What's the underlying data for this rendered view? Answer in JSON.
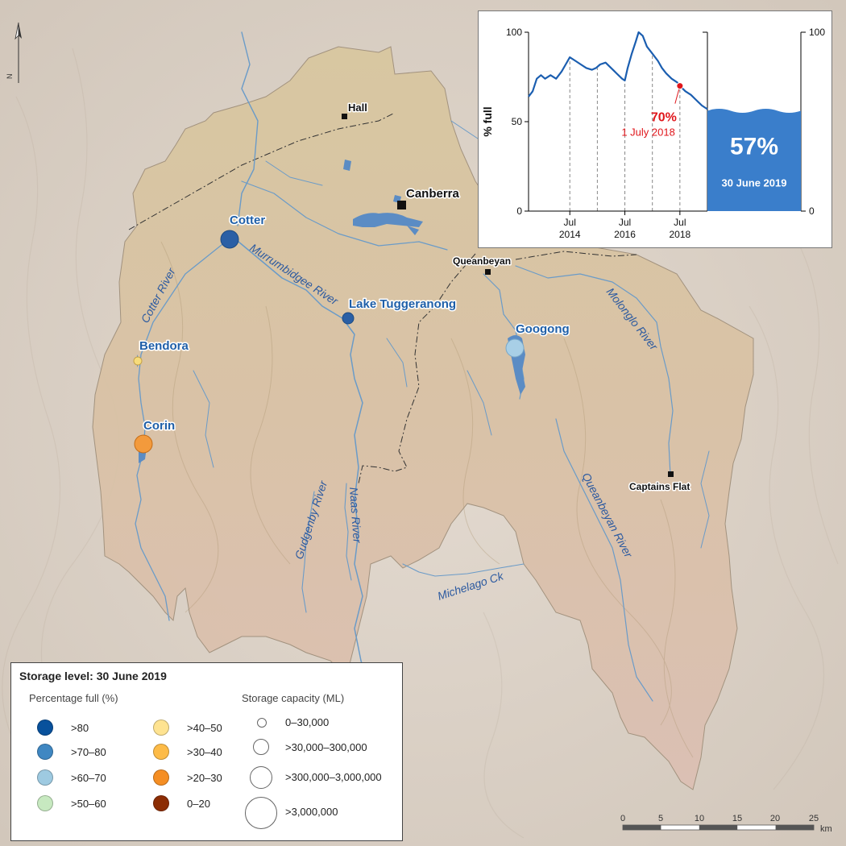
{
  "towns": [
    {
      "name": "Hall"
    },
    {
      "name": "Canberra"
    },
    {
      "name": "Queanbeyan"
    },
    {
      "name": "Captains Flat"
    }
  ],
  "rivers": [
    {
      "name": "Cotter River"
    },
    {
      "name": "Murrumbidgee River"
    },
    {
      "name": "Molonglo River"
    },
    {
      "name": "Queanbeyan River"
    },
    {
      "name": "Gudgenby River"
    },
    {
      "name": "Naas River"
    },
    {
      "name": "Michelago Ck"
    }
  ],
  "storages": [
    {
      "name": "Cotter",
      "color": "#2a5fa5"
    },
    {
      "name": "Lake Tuggeranong",
      "color": "#2a5fa5"
    },
    {
      "name": "Bendora",
      "color": "#f7dc7b"
    },
    {
      "name": "Corin",
      "color": "#f39a3c"
    },
    {
      "name": "Googong",
      "color": "#a8cfe6"
    }
  ],
  "north_label": "N",
  "inset": {
    "chart_data": {
      "type": "line",
      "ylabel": "% full",
      "ylim": [
        0,
        100
      ],
      "yticks": [
        "0",
        "50",
        "100"
      ],
      "right_axis_ticks": [
        "0",
        "100"
      ],
      "xticks": [
        {
          "month": "Jul",
          "year": "2014"
        },
        {
          "month": "Jul",
          "year": "2016"
        },
        {
          "month": "Jul",
          "year": "2018"
        }
      ],
      "x_start": 2013.0,
      "series": [
        {
          "values": [
            [
              2013.0,
              64
            ],
            [
              2013.15,
              67
            ],
            [
              2013.3,
              74
            ],
            [
              2013.45,
              76
            ],
            [
              2013.6,
              74
            ],
            [
              2013.8,
              76
            ],
            [
              2014.0,
              74
            ],
            [
              2014.2,
              78
            ],
            [
              2014.35,
              82
            ],
            [
              2014.5,
              86
            ],
            [
              2014.7,
              84
            ],
            [
              2014.9,
              82
            ],
            [
              2015.1,
              80
            ],
            [
              2015.3,
              79
            ],
            [
              2015.45,
              80
            ],
            [
              2015.6,
              82
            ],
            [
              2015.8,
              83
            ],
            [
              2016.0,
              80
            ],
            [
              2016.2,
              77
            ],
            [
              2016.4,
              74
            ],
            [
              2016.5,
              73
            ],
            [
              2016.6,
              80
            ],
            [
              2016.75,
              88
            ],
            [
              2016.9,
              95
            ],
            [
              2017.0,
              100
            ],
            [
              2017.15,
              98
            ],
            [
              2017.3,
              92
            ],
            [
              2017.5,
              88
            ],
            [
              2017.7,
              84
            ],
            [
              2017.85,
              80
            ],
            [
              2018.0,
              77
            ],
            [
              2018.2,
              74
            ],
            [
              2018.4,
              72
            ],
            [
              2018.5,
              70
            ],
            [
              2018.7,
              67
            ],
            [
              2018.9,
              65
            ],
            [
              2019.1,
              62
            ],
            [
              2019.3,
              59
            ],
            [
              2019.5,
              57
            ]
          ]
        }
      ],
      "annotation": {
        "value": "70%",
        "date": "1 July 2018",
        "x": 2018.5,
        "y": 70
      },
      "current": {
        "value": "57%",
        "date": "30 June 2019",
        "level": 57
      }
    }
  },
  "legend": {
    "title": "Storage level: 30 June 2019",
    "percent_title": "Percentage full (%)",
    "capacity_title": "Storage capacity (ML)",
    "percent_classes": [
      {
        "label": ">80",
        "color": "#08519c"
      },
      {
        "label": ">70–80",
        "color": "#3f87c2"
      },
      {
        "label": ">60–70",
        "color": "#9ecae1"
      },
      {
        "label": ">50–60",
        "color": "#c7e9c0"
      },
      {
        "label": ">40–50",
        "color": "#fee391"
      },
      {
        "label": ">30–40",
        "color": "#fdbb47"
      },
      {
        "label": ">20–30",
        "color": "#f58e23"
      },
      {
        "label": "0–20",
        "color": "#8c2d04"
      }
    ],
    "capacity_classes": [
      {
        "label": "0–30,000"
      },
      {
        "label": ">30,000–300,000"
      },
      {
        "label": ">300,000–3,000,000"
      },
      {
        "label": ">3,000,000"
      }
    ]
  },
  "scalebar": {
    "ticks": [
      "0",
      "5",
      "10",
      "15",
      "20",
      "25"
    ],
    "unit": "km"
  }
}
